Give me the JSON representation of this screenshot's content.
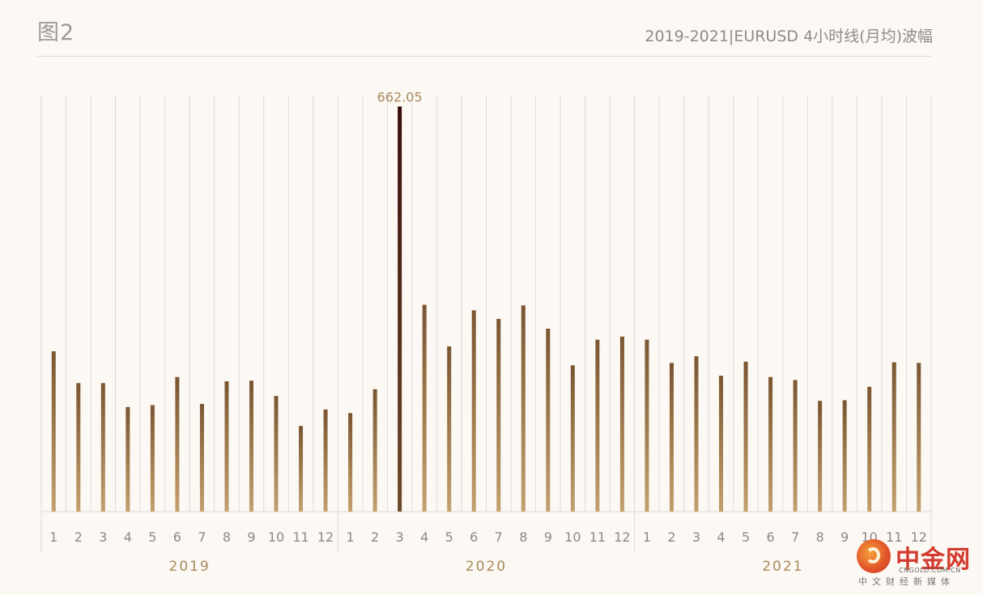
{
  "header": {
    "figure_label": "图2",
    "chart_title": "2019-2021|EURUSD 4小时线(月均)波幅"
  },
  "colors": {
    "background": "#fcf8f3",
    "bar_top": "#7a5530",
    "bar_bottom": "#c4a06f",
    "highlight_bar_top": "#3a0c0a",
    "highlight_bar_bottom": "#6b4a2a",
    "grid": "#dcdcdc",
    "year_label": "#a88a5e",
    "data_label": "#a88a5e"
  },
  "chart_data": {
    "type": "bar",
    "title": "2019-2021|EURUSD 4小时线(月均)波幅",
    "xlabel": "",
    "ylabel": "",
    "ylim": [
      0,
      680
    ],
    "grid": true,
    "groups": [
      {
        "label": "2019",
        "categories": [
          "1",
          "2",
          "3",
          "4",
          "5",
          "6",
          "7",
          "8",
          "9",
          "10",
          "11",
          "12"
        ]
      },
      {
        "label": "2020",
        "categories": [
          "1",
          "2",
          "3",
          "4",
          "5",
          "6",
          "7",
          "8",
          "9",
          "10",
          "11",
          "12"
        ]
      },
      {
        "label": "2021",
        "categories": [
          "1",
          "2",
          "3",
          "4",
          "5",
          "6",
          "7",
          "8",
          "9",
          "10",
          "11",
          "12"
        ]
      }
    ],
    "values": [
      262,
      210,
      210,
      171,
      174,
      220,
      176,
      213,
      214,
      189,
      140,
      167,
      161,
      200,
      662.05,
      338,
      270,
      329,
      315,
      337,
      299,
      239,
      281,
      286,
      281,
      243,
      254,
      222,
      245,
      220,
      215,
      181,
      182,
      204,
      244,
      243
    ],
    "highlight_index": 14,
    "data_labels": [
      {
        "index": 14,
        "text": "662.05"
      }
    ]
  },
  "watermark": {
    "name": "中金网",
    "domain": "CNGOLD.COM.CN",
    "slogan": "中文财经新媒体"
  }
}
